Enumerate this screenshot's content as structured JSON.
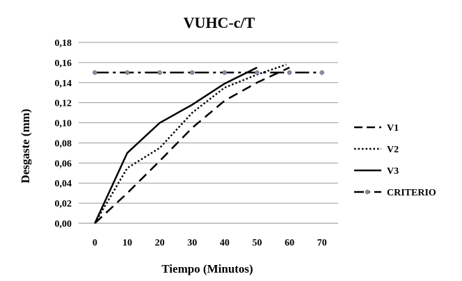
{
  "chart_data": {
    "type": "line",
    "title": "VUHC-c/T",
    "xlabel": "Tiempo (Minutos)",
    "ylabel": "Desgaste (mm)",
    "xlim": [
      -5,
      75
    ],
    "ylim": [
      0,
      0.18
    ],
    "x_ticks": [
      0,
      10,
      20,
      30,
      40,
      50,
      60,
      70
    ],
    "x_tick_labels": [
      "0",
      "10",
      "20",
      "30",
      "40",
      "50",
      "60",
      "70"
    ],
    "y_ticks": [
      0,
      0.02,
      0.04,
      0.06,
      0.08,
      0.1,
      0.12,
      0.14,
      0.16,
      0.18
    ],
    "y_tick_labels": [
      "0,00",
      "0,02",
      "0,04",
      "0,06",
      "0,08",
      "0,10",
      "0,12",
      "0,14",
      "0,16",
      "0,18"
    ],
    "grid": "horizontal",
    "legend_position": "right",
    "series": [
      {
        "name": "V1",
        "style": "dashed",
        "color": "#000000",
        "x": [
          0,
          10,
          20,
          30,
          40,
          50,
          60
        ],
        "y": [
          0,
          0.03,
          0.062,
          0.095,
          0.122,
          0.14,
          0.155
        ]
      },
      {
        "name": "V2",
        "style": "dotted",
        "color": "#000000",
        "x": [
          0,
          10,
          20,
          30,
          40,
          50,
          59
        ],
        "y": [
          0,
          0.055,
          0.075,
          0.11,
          0.135,
          0.148,
          0.158
        ]
      },
      {
        "name": "V3",
        "style": "solid",
        "color": "#000000",
        "x": [
          0,
          10,
          20,
          30,
          40,
          50
        ],
        "y": [
          0,
          0.07,
          0.1,
          0.118,
          0.139,
          0.155
        ]
      },
      {
        "name": "CRITERIO",
        "style": "dash-dot-markers",
        "color": "#000000",
        "marker_color": "#8a8aa8",
        "x": [
          0,
          10,
          20,
          30,
          40,
          50,
          60,
          70
        ],
        "y": [
          0.15,
          0.15,
          0.15,
          0.15,
          0.15,
          0.15,
          0.15,
          0.15
        ]
      }
    ]
  }
}
